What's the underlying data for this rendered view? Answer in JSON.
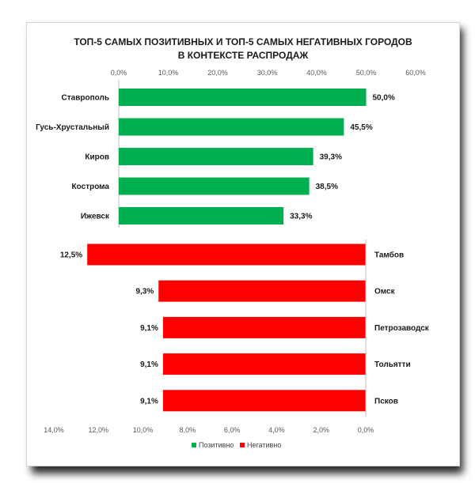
{
  "title_line1": "ТОП-5 САМЫХ ПОЗИТИВНЫХ И ТОП-5 САМЫХ НЕГАТИВНЫХ ГОРОДОВ",
  "title_line2": "В КОНТЕКСТЕ РАСПРОДАЖ",
  "chart_data": [
    {
      "type": "bar",
      "orientation": "horizontal",
      "series": [
        {
          "name": "Позитивно",
          "color": "#00b050"
        }
      ],
      "categories": [
        "Ставрополь",
        "Гусь-Хрустальный",
        "Киров",
        "Кострома",
        "Ижевск"
      ],
      "values": [
        50.0,
        45.5,
        39.3,
        38.5,
        33.3
      ],
      "value_labels": [
        "50,0%",
        "45,5%",
        "39,3%",
        "38,5%",
        "33,3%"
      ],
      "xlim": [
        0,
        60
      ],
      "ticks": [
        "0,0%",
        "10,0%",
        "20,0%",
        "30,0%",
        "40,0%",
        "50,0%",
        "60,0%"
      ],
      "axis_position": "top"
    },
    {
      "type": "bar",
      "orientation": "horizontal",
      "reversed": true,
      "series": [
        {
          "name": "Негативно",
          "color": "#ff0000"
        }
      ],
      "categories": [
        "Тамбов",
        "Омск",
        "Петрозаводск",
        "Тольятти",
        "Псков"
      ],
      "values": [
        12.5,
        9.3,
        9.1,
        9.1,
        9.1
      ],
      "value_labels": [
        "12,5%",
        "9,3%",
        "9,1%",
        "9,1%",
        "9,1%"
      ],
      "xlim": [
        0,
        14
      ],
      "ticks": [
        "14,0%",
        "12,0%",
        "10,0%",
        "8,0%",
        "6,0%",
        "4,0%",
        "2,0%",
        "0,0%"
      ],
      "axis_position": "bottom"
    }
  ],
  "legend": [
    {
      "label": "Позитивно",
      "color": "#00b050"
    },
    {
      "label": "Негативно",
      "color": "#ff0000"
    }
  ]
}
